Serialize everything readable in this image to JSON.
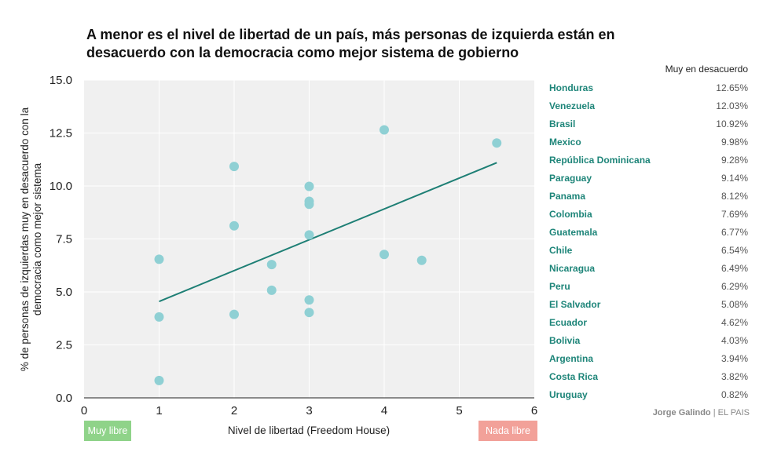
{
  "chart_data": {
    "type": "scatter",
    "title": "A menor es el nivel de libertad de un país, más personas de izquierda están en desacuerdo con la democracia como mejor sistema de gobierno",
    "xlabel": "Nivel de libertad (Freedom House)",
    "ylabel_lines": [
      "% de personas de izquierdas muy en desacuerdo con la",
      "democracia como mejor sistema"
    ],
    "xlim": [
      0,
      6
    ],
    "ylim": [
      0,
      15
    ],
    "xticks": [
      "0",
      "1",
      "2",
      "3",
      "4",
      "5",
      "6"
    ],
    "yticks": [
      "0.0",
      "2.5",
      "5.0",
      "7.5",
      "10.0",
      "12.5",
      "15.0"
    ],
    "xtick_values": [
      0,
      1,
      2,
      3,
      4,
      5,
      6
    ],
    "ytick_values": [
      0,
      2.5,
      5,
      7.5,
      10,
      12.5,
      15
    ],
    "grid": true,
    "point_color": "#8fd0d4",
    "trend_color": "#1e7f75",
    "trendline": {
      "x": [
        1,
        5.5
      ],
      "y": [
        4.55,
        11.1
      ]
    },
    "points": [
      {
        "country": "Honduras",
        "x": 4,
        "y": 12.65
      },
      {
        "country": "Venezuela",
        "x": 5.5,
        "y": 12.03
      },
      {
        "country": "Brasil",
        "x": 2,
        "y": 10.92
      },
      {
        "country": "Mexico",
        "x": 3,
        "y": 9.98
      },
      {
        "country": "República Dominicana",
        "x": 3,
        "y": 9.28
      },
      {
        "country": "Paraguay",
        "x": 3,
        "y": 9.14
      },
      {
        "country": "Panama",
        "x": 2,
        "y": 8.12
      },
      {
        "country": "Colombia",
        "x": 3,
        "y": 7.69
      },
      {
        "country": "Guatemala",
        "x": 4,
        "y": 6.77
      },
      {
        "country": "Chile",
        "x": 1,
        "y": 6.54
      },
      {
        "country": "Nicaragua",
        "x": 4.5,
        "y": 6.49
      },
      {
        "country": "Peru",
        "x": 2.5,
        "y": 6.29
      },
      {
        "country": "El Salvador",
        "x": 2.5,
        "y": 5.08
      },
      {
        "country": "Ecuador",
        "x": 3,
        "y": 4.62
      },
      {
        "country": "Bolivia",
        "x": 3,
        "y": 4.03
      },
      {
        "country": "Argentina",
        "x": 2,
        "y": 3.94
      },
      {
        "country": "Costa Rica",
        "x": 1,
        "y": 3.82
      },
      {
        "country": "Uruguay",
        "x": 1,
        "y": 0.82
      }
    ]
  },
  "table": {
    "header": "Muy en desacuerdo",
    "rows": [
      {
        "country": "Honduras",
        "value": "12.65%"
      },
      {
        "country": "Venezuela",
        "value": "12.03%"
      },
      {
        "country": "Brasil",
        "value": "10.92%"
      },
      {
        "country": "Mexico",
        "value": "9.98%"
      },
      {
        "country": "República Dominicana",
        "value": "9.28%"
      },
      {
        "country": "Paraguay",
        "value": "9.14%"
      },
      {
        "country": "Panama",
        "value": "8.12%"
      },
      {
        "country": "Colombia",
        "value": "7.69%"
      },
      {
        "country": "Guatemala",
        "value": "6.77%"
      },
      {
        "country": "Chile",
        "value": "6.54%"
      },
      {
        "country": "Nicaragua",
        "value": "6.49%"
      },
      {
        "country": "Peru",
        "value": "6.29%"
      },
      {
        "country": "El Salvador",
        "value": "5.08%"
      },
      {
        "country": "Ecuador",
        "value": "4.62%"
      },
      {
        "country": "Bolivia",
        "value": "4.03%"
      },
      {
        "country": "Argentina",
        "value": "3.94%"
      },
      {
        "country": "Costa Rica",
        "value": "3.82%"
      },
      {
        "country": "Uruguay",
        "value": "0.82%"
      }
    ]
  },
  "badges": {
    "left": "Muy libre",
    "right": "Nada libre",
    "left_color": "#8fd389",
    "right_color": "#f2a199"
  },
  "credit": {
    "author": "Jorge Galindo",
    "separator": " | ",
    "outlet": "EL PAIS"
  }
}
